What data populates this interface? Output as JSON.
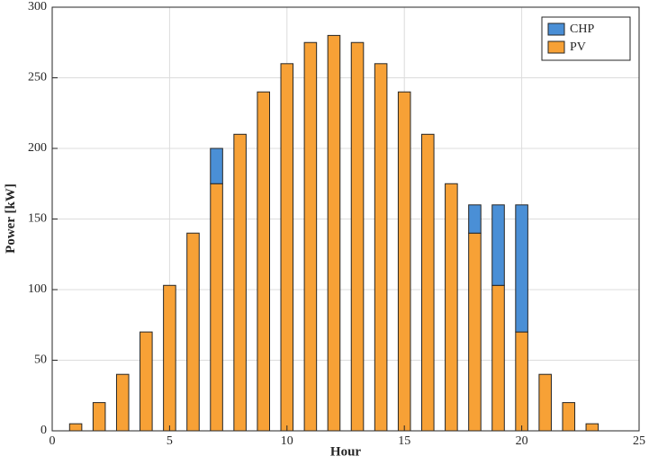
{
  "chart_data": {
    "type": "bar",
    "stacked": true,
    "xlabel": "Hour",
    "ylabel": "Power [kW]",
    "xlim": [
      0,
      25
    ],
    "ylim": [
      0,
      300
    ],
    "x_ticks": [
      0,
      5,
      10,
      15,
      20,
      25
    ],
    "y_ticks": [
      0,
      50,
      100,
      150,
      200,
      250,
      300
    ],
    "grid": true,
    "legend_position": "top-right",
    "x": [
      1,
      2,
      3,
      4,
      5,
      6,
      7,
      8,
      9,
      10,
      11,
      12,
      13,
      14,
      15,
      16,
      17,
      18,
      19,
      20,
      21,
      22,
      23
    ],
    "series": [
      {
        "name": "PV",
        "color": "#f7a136",
        "values": [
          5,
          20,
          40,
          70,
          103,
          140,
          175,
          210,
          240,
          260,
          275,
          280,
          275,
          260,
          240,
          210,
          175,
          140,
          103,
          70,
          40,
          20,
          5
        ]
      },
      {
        "name": "CHP",
        "color": "#4a8fd6",
        "values": [
          0,
          0,
          0,
          0,
          0,
          0,
          25,
          0,
          0,
          0,
          0,
          0,
          0,
          0,
          0,
          0,
          0,
          20,
          57,
          90,
          0,
          0,
          0
        ]
      }
    ],
    "legend": [
      "CHP",
      "PV"
    ]
  }
}
